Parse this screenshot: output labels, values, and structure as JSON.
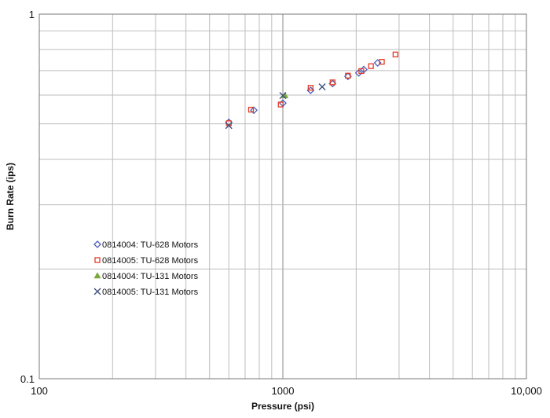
{
  "chart_data": {
    "type": "scatter",
    "x_scale": "log",
    "y_scale": "log",
    "xlabel": "Pressure (psi)",
    "ylabel": "Burn Rate (ips)",
    "xlim": [
      100,
      10000
    ],
    "ylim": [
      0.1,
      1
    ],
    "x_tick_labels": [
      "100",
      "1000",
      "10,000"
    ],
    "y_tick_labels": [
      "0.1",
      "1"
    ],
    "grid": true,
    "legend_position": "left-middle",
    "series": [
      {
        "name": "0814004: TU-628 Motors",
        "marker": "diamond",
        "color": "#4a5fb8",
        "points": [
          {
            "x": 600,
            "y": 0.505
          },
          {
            "x": 760,
            "y": 0.545
          },
          {
            "x": 1000,
            "y": 0.57
          },
          {
            "x": 1300,
            "y": 0.618
          },
          {
            "x": 1600,
            "y": 0.645
          },
          {
            "x": 1850,
            "y": 0.675
          },
          {
            "x": 2050,
            "y": 0.69
          },
          {
            "x": 2150,
            "y": 0.705
          },
          {
            "x": 2450,
            "y": 0.735
          }
        ]
      },
      {
        "name": "0814005: TU-628 Motors",
        "marker": "square",
        "color": "#e03c28",
        "points": [
          {
            "x": 600,
            "y": 0.502
          },
          {
            "x": 740,
            "y": 0.547
          },
          {
            "x": 980,
            "y": 0.565
          },
          {
            "x": 1300,
            "y": 0.628
          },
          {
            "x": 1600,
            "y": 0.65
          },
          {
            "x": 1850,
            "y": 0.678
          },
          {
            "x": 2100,
            "y": 0.698
          },
          {
            "x": 2300,
            "y": 0.72
          },
          {
            "x": 2550,
            "y": 0.74
          },
          {
            "x": 2900,
            "y": 0.775
          }
        ]
      },
      {
        "name": "0814004: TU-131 Motors",
        "marker": "triangle",
        "color": "#7aa83a",
        "points": [
          {
            "x": 1020,
            "y": 0.598
          }
        ]
      },
      {
        "name": "0814005: TU-131 Motors",
        "marker": "x",
        "color": "#3d4f7c",
        "points": [
          {
            "x": 600,
            "y": 0.495
          },
          {
            "x": 1000,
            "y": 0.598
          },
          {
            "x": 1450,
            "y": 0.632
          }
        ]
      }
    ]
  }
}
